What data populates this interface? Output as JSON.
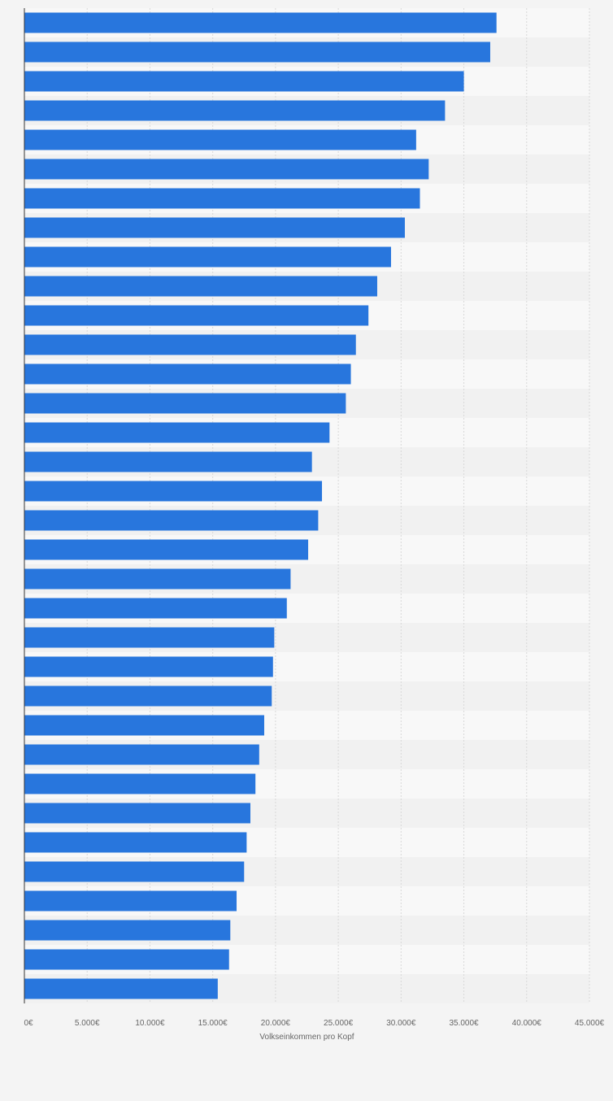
{
  "colors": {
    "bar": "#2876dd",
    "band_light": "#f8f8f8",
    "band_dark": "#f1f1f1",
    "grid": "#d8d8d8",
    "axis": "#333333",
    "tick_text": "#666666"
  },
  "chart_data": {
    "type": "bar",
    "orientation": "horizontal",
    "xlabel": "Volkseinkommen pro Kopf",
    "xlim": [
      0,
      45000
    ],
    "x_ticks": [
      0,
      5000,
      10000,
      15000,
      20000,
      25000,
      30000,
      35000,
      40000,
      45000
    ],
    "x_tick_labels": [
      "0€",
      "5.000€",
      "10.000€",
      "15.000€",
      "20.000€",
      "25.000€",
      "30.000€",
      "35.000€",
      "40.000€",
      "45.000€"
    ],
    "grid": true,
    "values": [
      37600,
      37100,
      35000,
      33500,
      31200,
      32200,
      31500,
      30300,
      29200,
      28100,
      27400,
      26400,
      26000,
      25600,
      24300,
      22900,
      23700,
      23400,
      22600,
      21200,
      20900,
      19900,
      19800,
      19700,
      19100,
      18700,
      18400,
      18000,
      17700,
      17500,
      16900,
      16400,
      16300,
      15400
    ]
  }
}
